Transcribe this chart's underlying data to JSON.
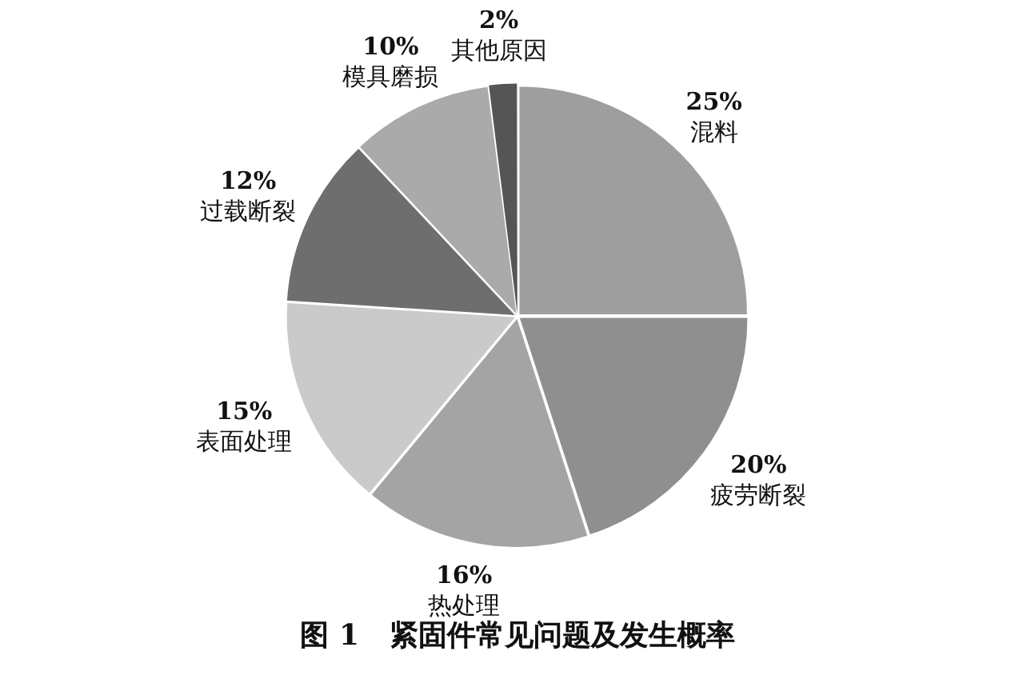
{
  "chart_data": {
    "type": "pie",
    "title": "图 1   紧固件常见问题及发生概率",
    "categories": [
      "混料",
      "疲劳断裂",
      "热处理",
      "表面处理",
      "过载断裂",
      "模具磨损",
      "其他原因"
    ],
    "values": [
      25,
      20,
      16,
      15,
      12,
      10,
      2
    ],
    "value_labels": [
      "25%",
      "20%",
      "16%",
      "15%",
      "12%",
      "10%",
      "2%"
    ],
    "colors": [
      "#9e9e9e",
      "#8f8f8f",
      "#a4a4a4",
      "#cacaca",
      "#6e6e6e",
      "#aaaaaa",
      "#555555"
    ],
    "legend": false
  }
}
